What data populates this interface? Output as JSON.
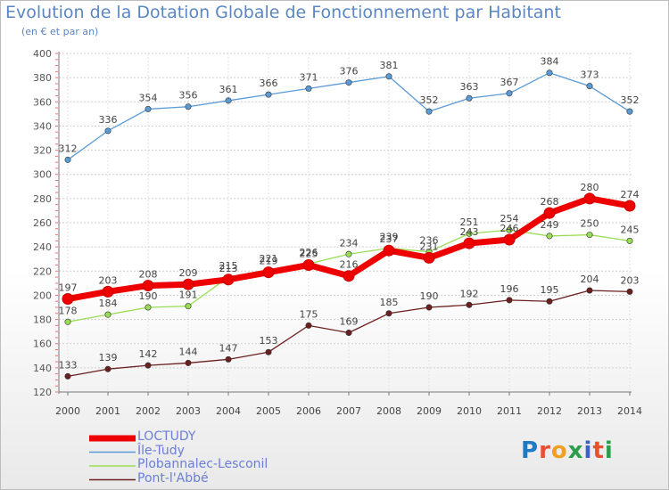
{
  "title": "Evolution de la Dotation Globale de Fonctionnement par Habitant",
  "subtitle": "(en € et par an)",
  "logo": "Proxiti",
  "chart_data": {
    "type": "line",
    "x": [
      "2000",
      "2001",
      "2002",
      "2003",
      "2004",
      "2005",
      "2006",
      "2007",
      "2008",
      "2009",
      "2010",
      "2011",
      "2012",
      "2013",
      "2014"
    ],
    "ylim": [
      120,
      400
    ],
    "yticks": [
      120,
      140,
      160,
      180,
      200,
      220,
      240,
      260,
      280,
      300,
      320,
      340,
      360,
      380,
      400
    ],
    "grid": "horizontal dotted",
    "legend_position": "bottom-left",
    "series": [
      {
        "name": "LOCTUDY",
        "color": "#ee0000",
        "values": [
          197,
          203,
          208,
          209,
          213,
          219,
          225,
          216,
          237,
          231,
          243,
          246,
          268,
          280,
          274
        ]
      },
      {
        "name": "Île-Tudy",
        "color": "#5b9bd5",
        "values": [
          312,
          336,
          354,
          356,
          361,
          366,
          371,
          376,
          381,
          352,
          363,
          367,
          384,
          373,
          352
        ]
      },
      {
        "name": "Plobannalec-Lesconil",
        "color": "#99dd55",
        "values": [
          178,
          184,
          190,
          191,
          215,
          221,
          226,
          234,
          239,
          236,
          251,
          254,
          249,
          250,
          245
        ]
      },
      {
        "name": "Pont-l'Abbé",
        "color": "#6b1f1f",
        "values": [
          133,
          139,
          142,
          144,
          147,
          153,
          175,
          169,
          185,
          190,
          192,
          196,
          195,
          204,
          203
        ]
      }
    ]
  }
}
